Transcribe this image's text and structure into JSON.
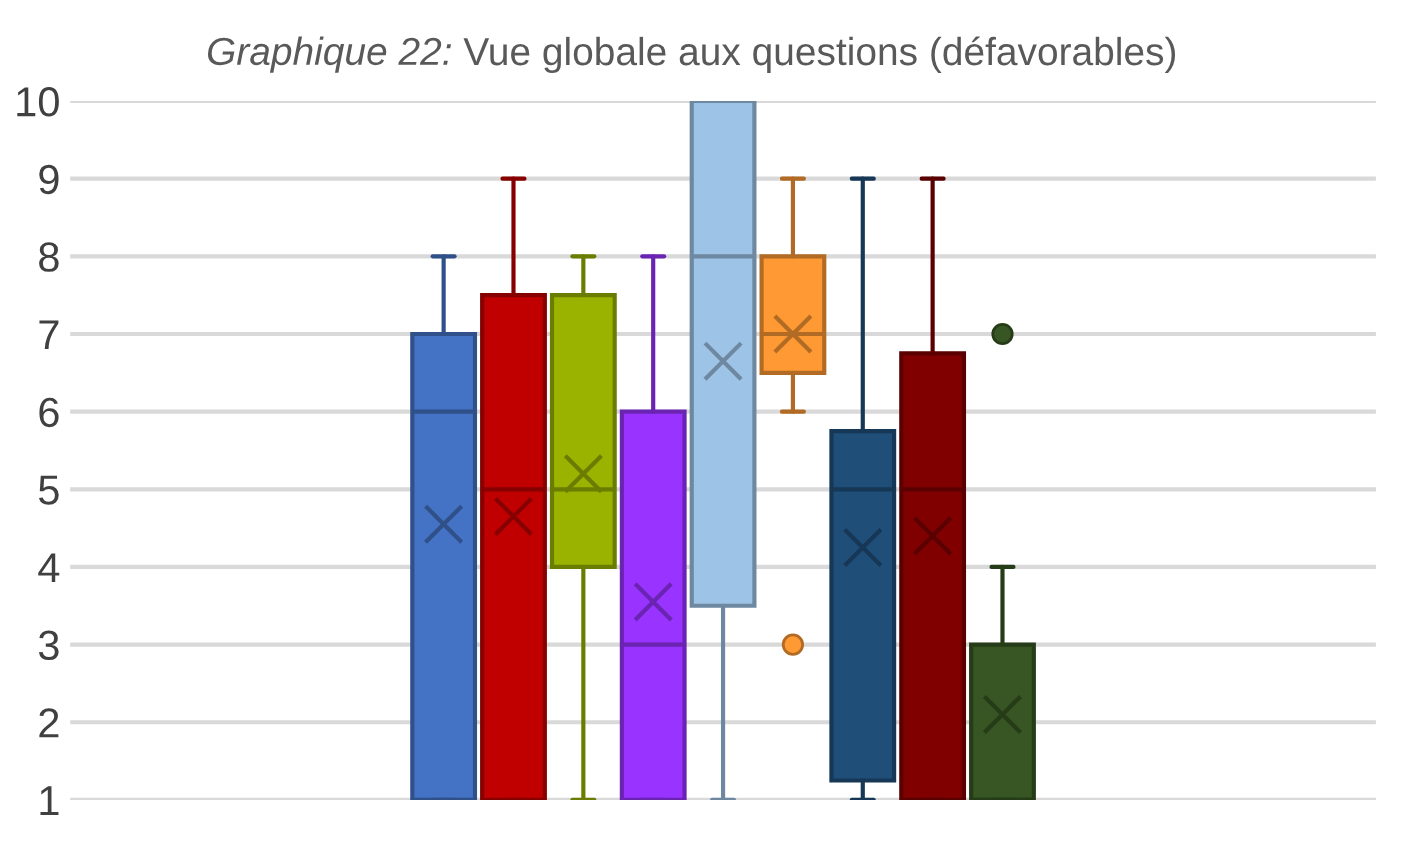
{
  "chart_data": {
    "type": "box",
    "title": "Graphique 22: Vue globale aux questions (défavorables)",
    "categories": [
      null
    ],
    "series": [
      {
        "color": "#4472c4",
        "boxes": [
          {
            "low": 1,
            "q1": 1,
            "median": 6,
            "q3": 7,
            "high": 8,
            "mean": 4.55
          }
        ]
      },
      {
        "color": "#c00000",
        "boxes": [
          {
            "low": 1,
            "q1": 1,
            "median": 5,
            "q3": 7.5,
            "high": 9,
            "mean": 4.65
          }
        ]
      },
      {
        "color": "#99b300",
        "boxes": [
          {
            "low": 1,
            "q1": 4,
            "median": 5,
            "q3": 7.5,
            "high": 8,
            "mean": 5.2
          }
        ]
      },
      {
        "color": "#9933ff",
        "boxes": [
          {
            "low": 1,
            "q1": 1,
            "median": 3,
            "q3": 6,
            "high": 8,
            "mean": 3.55
          }
        ]
      },
      {
        "color": "#9dc3e6",
        "boxes": [
          {
            "low": 1,
            "q1": 3.5,
            "median": 8,
            "q3": 10,
            "high": 10,
            "mean": 6.65
          }
        ]
      },
      {
        "color": "#ff9933",
        "boxes": [
          {
            "low": 6,
            "q1": 6.5,
            "median": 7,
            "q3": 8,
            "high": 9,
            "mean": 7,
            "outliers": [
              3
            ]
          }
        ]
      },
      {
        "color": "#1f4e79",
        "boxes": [
          {
            "low": 1,
            "q1": 1.25,
            "median": 5,
            "q3": 5.75,
            "high": 9,
            "mean": 4.25
          }
        ]
      },
      {
        "color": "#800000",
        "boxes": [
          {
            "low": 1,
            "q1": 1,
            "median": 5,
            "q3": 6.75,
            "high": 9,
            "mean": 4.4
          }
        ]
      },
      {
        "color": "#375623",
        "boxes": [
          {
            "low": 1,
            "q1": 1,
            "median": 1,
            "q3": 3,
            "high": 4,
            "mean": 2.1,
            "outliers": [
              7
            ]
          }
        ]
      }
    ],
    "ylim": [
      1,
      10
    ],
    "yticks": [
      1,
      2,
      3,
      4,
      5,
      6,
      7,
      8,
      9,
      10
    ],
    "grid": "y",
    "marker": "cross"
  }
}
